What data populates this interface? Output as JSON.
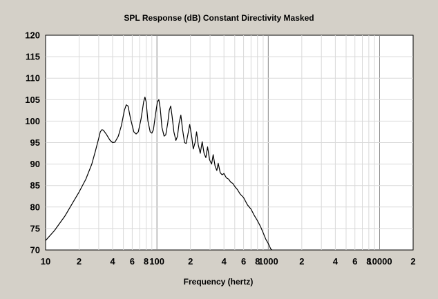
{
  "chart_data": {
    "type": "line",
    "title": "SPL Response (dB)   Constant Directivity   Masked",
    "xlabel": "Frequency (hertz)",
    "ylabel": "",
    "x_scale": "log",
    "xlim": [
      10,
      20000
    ],
    "ylim": [
      70,
      120
    ],
    "grid": true,
    "y_ticks": [
      70,
      75,
      80,
      85,
      90,
      95,
      100,
      105,
      110,
      115,
      120
    ],
    "x_ticks": [
      {
        "value": 10,
        "label": "10"
      },
      {
        "value": 20,
        "label": "2"
      },
      {
        "value": 40,
        "label": "4"
      },
      {
        "value": 60,
        "label": "6"
      },
      {
        "value": 80,
        "label": "8"
      },
      {
        "value": 100,
        "label": "100"
      },
      {
        "value": 200,
        "label": "2"
      },
      {
        "value": 400,
        "label": "4"
      },
      {
        "value": 600,
        "label": "6"
      },
      {
        "value": 800,
        "label": "8"
      },
      {
        "value": 1000,
        "label": "1000"
      },
      {
        "value": 2000,
        "label": "2"
      },
      {
        "value": 4000,
        "label": "4"
      },
      {
        "value": 6000,
        "label": "6"
      },
      {
        "value": 8000,
        "label": "8"
      },
      {
        "value": 10000,
        "label": "10000"
      },
      {
        "value": 20000,
        "label": "2"
      }
    ],
    "series": [
      {
        "color": "#000000",
        "points": [
          [
            10,
            72.2
          ],
          [
            12,
            74.5
          ],
          [
            15,
            78.0
          ],
          [
            18,
            81.5
          ],
          [
            20,
            83.5
          ],
          [
            23,
            86.5
          ],
          [
            26,
            90.0
          ],
          [
            28,
            93.0
          ],
          [
            30,
            96.0
          ],
          [
            31,
            97.5
          ],
          [
            32,
            98.0
          ],
          [
            33,
            97.9
          ],
          [
            35,
            97.0
          ],
          [
            38,
            95.5
          ],
          [
            40,
            95.0
          ],
          [
            42,
            95.1
          ],
          [
            45,
            96.5
          ],
          [
            48,
            99.0
          ],
          [
            51,
            102.5
          ],
          [
            53,
            103.8
          ],
          [
            55,
            103.5
          ],
          [
            58,
            100.5
          ],
          [
            62,
            97.5
          ],
          [
            65,
            97.0
          ],
          [
            68,
            97.5
          ],
          [
            72,
            100.5
          ],
          [
            76,
            104.5
          ],
          [
            78,
            105.6
          ],
          [
            80,
            104.5
          ],
          [
            83,
            100.0
          ],
          [
            87,
            97.5
          ],
          [
            90,
            97.2
          ],
          [
            93,
            98.0
          ],
          [
            97,
            101.5
          ],
          [
            101,
            104.5
          ],
          [
            104,
            105.0
          ],
          [
            107,
            103.0
          ],
          [
            111,
            98.5
          ],
          [
            116,
            96.5
          ],
          [
            120,
            96.8
          ],
          [
            125,
            99.5
          ],
          [
            129,
            102.5
          ],
          [
            133,
            103.5
          ],
          [
            137,
            101.0
          ],
          [
            142,
            97.5
          ],
          [
            148,
            95.5
          ],
          [
            153,
            96.5
          ],
          [
            158,
            99.5
          ],
          [
            164,
            101.4
          ],
          [
            170,
            98.0
          ],
          [
            177,
            95.0
          ],
          [
            183,
            94.8
          ],
          [
            190,
            97.0
          ],
          [
            197,
            99.2
          ],
          [
            205,
            96.5
          ],
          [
            212,
            93.5
          ],
          [
            220,
            95.0
          ],
          [
            227,
            97.5
          ],
          [
            235,
            94.5
          ],
          [
            245,
            92.5
          ],
          [
            255,
            95.2
          ],
          [
            265,
            92.5
          ],
          [
            275,
            91.5
          ],
          [
            285,
            94.0
          ],
          [
            297,
            91.0
          ],
          [
            310,
            90.0
          ],
          [
            320,
            92.2
          ],
          [
            333,
            89.5
          ],
          [
            345,
            88.5
          ],
          [
            355,
            90.2
          ],
          [
            370,
            88.0
          ],
          [
            385,
            87.5
          ],
          [
            400,
            87.8
          ],
          [
            420,
            86.8
          ],
          [
            440,
            86.5
          ],
          [
            460,
            85.8
          ],
          [
            480,
            85.5
          ],
          [
            500,
            84.8
          ],
          [
            530,
            84.0
          ],
          [
            560,
            83.0
          ],
          [
            600,
            82.2
          ],
          [
            650,
            80.5
          ],
          [
            700,
            79.5
          ],
          [
            750,
            78.0
          ],
          [
            800,
            76.8
          ],
          [
            850,
            75.5
          ],
          [
            900,
            74.0
          ],
          [
            950,
            72.5
          ],
          [
            1000,
            71.5
          ],
          [
            1050,
            70.3
          ],
          [
            1080,
            70.0
          ]
        ]
      }
    ]
  }
}
